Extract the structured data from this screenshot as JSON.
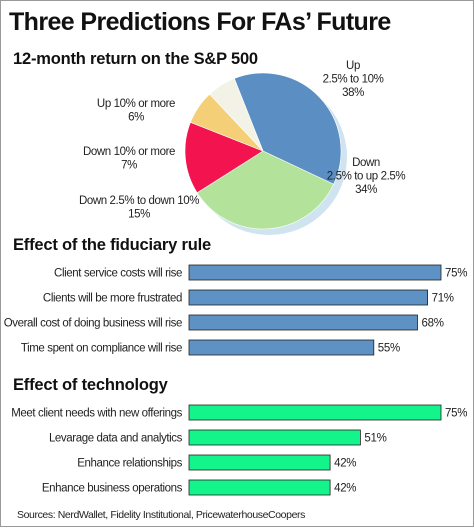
{
  "title": "Three Predictions For FAs’ Future",
  "source": "Sources: NerdWallet, Fidelity Institutional, PricewaterhouseCoopers",
  "colors": {
    "up": "#5b8ec2",
    "down_small": "#b3e39a",
    "down_mid": "#f2134f",
    "down_large": "#f4cf77",
    "up_large": "#f2f2e6",
    "pie_shadow": "#cfe4ef",
    "fiduciary_bar": "#5e92c4",
    "technology_bar": "#13f58b",
    "bar_border": "#222222"
  },
  "chart_data": [
    {
      "type": "pie",
      "title": "12-month return on the S&P 500",
      "categories": [
        "Up 2.5% to 10%",
        "Down 2.5% to up 2.5%",
        "Down 2.5% to down 10%",
        "Down 10% or more",
        "Up 10% or more"
      ],
      "values": [
        38,
        34,
        15,
        7,
        6
      ],
      "labels": [
        [
          "Up",
          "2.5% to 10%",
          "38%"
        ],
        [
          "Down",
          "2.5% to up 2.5%",
          "34%"
        ],
        [
          "Down 2.5% to down 10%",
          "15%"
        ],
        [
          "Down 10% or more",
          "7%"
        ],
        [
          "Up 10% or more",
          "6%"
        ]
      ]
    },
    {
      "type": "bar",
      "orientation": "horizontal",
      "title": "Effect of the fiduciary rule",
      "categories": [
        "Client service costs will rise",
        "Clients will be more frustrated",
        "Overall cost of doing business will rise",
        "Time spent on compliance will rise"
      ],
      "values": [
        75,
        71,
        68,
        55
      ],
      "value_labels": [
        "75%",
        "71%",
        "68%",
        "55%"
      ],
      "xlim": [
        0,
        75
      ]
    },
    {
      "type": "bar",
      "orientation": "horizontal",
      "title": "Effect of technology",
      "categories": [
        "Meet client needs with new offerings",
        "Levarage data and analytics",
        "Enhance relationships",
        "Enhance business operations"
      ],
      "values": [
        75,
        51,
        42,
        42
      ],
      "value_labels": [
        "75%",
        "51%",
        "42%",
        "42%"
      ],
      "xlim": [
        0,
        75
      ]
    }
  ]
}
